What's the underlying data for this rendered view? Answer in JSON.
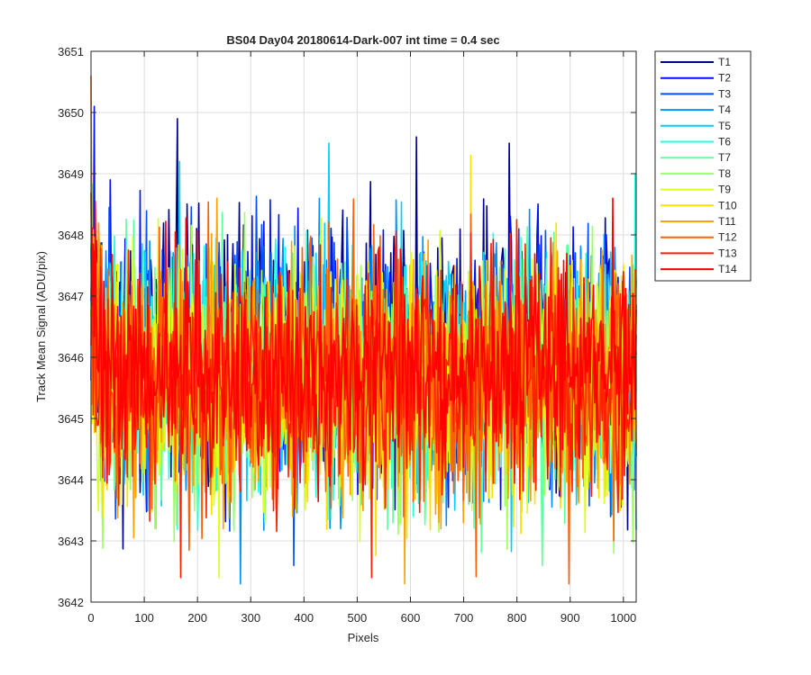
{
  "chart_data": {
    "type": "line",
    "title": "BS04 Day04 20180614-Dark-007 int time = 0.4 sec",
    "xlabel": "Pixels",
    "ylabel": "Track Mean Signal (ADU/pix)",
    "xlim": [
      0,
      1024
    ],
    "ylim": [
      3642,
      3651
    ],
    "xticks": [
      0,
      100,
      200,
      300,
      400,
      500,
      600,
      700,
      800,
      900,
      1000
    ],
    "yticks": [
      3642,
      3643,
      3644,
      3645,
      3646,
      3647,
      3648,
      3649,
      3650,
      3651
    ],
    "grid": true,
    "legend_placement": "outside-right",
    "series": [
      {
        "name": "T1",
        "color": "#00008f",
        "mean": 3646.1,
        "sd": 1.05,
        "seed": 11,
        "peaks": [
          [
            161,
            3649.9
          ],
          [
            610,
            3649.6
          ],
          [
            783,
            3649.5
          ]
        ]
      },
      {
        "name": "T2",
        "color": "#0010ff",
        "mean": 3646.0,
        "sd": 1.0,
        "seed": 23,
        "peaks": [
          [
            5,
            3650.1
          ],
          [
            35,
            3648.9
          ]
        ]
      },
      {
        "name": "T3",
        "color": "#0050ff",
        "mean": 3645.9,
        "sd": 1.0,
        "seed": 37,
        "peaks": [
          [
            380,
            3642.6
          ]
        ]
      },
      {
        "name": "T4",
        "color": "#0090ff",
        "mean": 3645.8,
        "sd": 1.0,
        "seed": 41,
        "peaks": [
          [
            280,
            3642.3
          ]
        ]
      },
      {
        "name": "T5",
        "color": "#00d0ff",
        "mean": 3645.8,
        "sd": 1.0,
        "seed": 53,
        "peaks": [
          [
            166,
            3649.2
          ],
          [
            445,
            3649.5
          ]
        ]
      },
      {
        "name": "T6",
        "color": "#20ffdf",
        "mean": 3645.7,
        "sd": 1.0,
        "seed": 67,
        "peaks": [
          [
            1020,
            3649.0
          ]
        ]
      },
      {
        "name": "T7",
        "color": "#60ff9f",
        "mean": 3645.7,
        "sd": 1.0,
        "seed": 71,
        "peaks": [
          [
            845,
            3642.6
          ]
        ]
      },
      {
        "name": "T8",
        "color": "#9fff60",
        "mean": 3645.6,
        "sd": 1.0,
        "seed": 83,
        "peaks": [
          [
            980,
            3642.8
          ]
        ]
      },
      {
        "name": "T9",
        "color": "#dfff20",
        "mean": 3645.6,
        "sd": 1.0,
        "seed": 97,
        "peaks": [
          [
            240,
            3642.4
          ]
        ]
      },
      {
        "name": "T10",
        "color": "#ffdf00",
        "mean": 3645.5,
        "sd": 1.0,
        "seed": 101,
        "peaks": [
          [
            712,
            3649.3
          ]
        ]
      },
      {
        "name": "T11",
        "color": "#ffa000",
        "mean": 3645.6,
        "sd": 1.0,
        "seed": 113,
        "peaks": [
          [
            235,
            3648.6
          ],
          [
            588,
            3642.3
          ]
        ]
      },
      {
        "name": "T12",
        "color": "#ff6000",
        "mean": 3645.6,
        "sd": 1.0,
        "seed": 127,
        "peaks": [
          [
            0,
            3650.6
          ],
          [
            895,
            3642.3
          ]
        ]
      },
      {
        "name": "T13",
        "color": "#ff2000",
        "mean": 3645.6,
        "sd": 0.95,
        "seed": 131,
        "peaks": [
          [
            168,
            3642.4
          ],
          [
            525,
            3642.4
          ]
        ]
      },
      {
        "name": "T14",
        "color": "#ff0000",
        "mean": 3645.8,
        "sd": 0.85,
        "seed": 139,
        "peaks": [
          [
            978,
            3648.6
          ]
        ]
      }
    ]
  }
}
